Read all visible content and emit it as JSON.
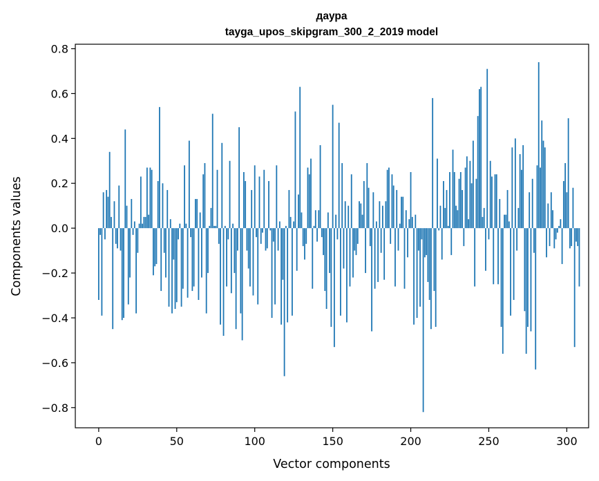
{
  "figure": {
    "title_line1": "даура",
    "title_line2": "tayga_upos_skipgram_300_2_2019 model"
  },
  "chart_data": {
    "type": "bar",
    "title": "даура\ntayga_upos_skipgram_300_2_2019 model",
    "xlabel": "Vector components",
    "ylabel": "Components values",
    "xlim": [
      -15,
      314
    ],
    "ylim": [
      -0.89,
      0.82
    ],
    "xticks": [
      0,
      50,
      100,
      150,
      200,
      250,
      300
    ],
    "xtick_labels": [
      "0",
      "50",
      "100",
      "150",
      "200",
      "250",
      "300"
    ],
    "yticks": [
      -0.8,
      -0.6,
      -0.4,
      -0.2,
      0.0,
      0.2,
      0.4,
      0.6,
      0.8
    ],
    "ytick_labels": [
      "−0.8",
      "−0.6",
      "−0.4",
      "−0.2",
      "0.0",
      "0.2",
      "0.4",
      "0.6",
      "0.8"
    ],
    "bar_color": "#1f77b4",
    "grid": false,
    "values": [
      -0.32,
      -0.03,
      -0.39,
      0.16,
      -0.05,
      0.17,
      0.14,
      0.34,
      0.05,
      -0.45,
      0.12,
      -0.07,
      -0.09,
      0.19,
      -0.1,
      -0.41,
      -0.4,
      0.44,
      0.1,
      -0.34,
      -0.22,
      0.13,
      -0.03,
      0.03,
      -0.38,
      -0.11,
      0.02,
      0.23,
      0.02,
      0.05,
      0.05,
      0.27,
      0.06,
      0.27,
      0.26,
      -0.21,
      -0.17,
      -0.16,
      0.21,
      0.54,
      -0.28,
      0.2,
      -0.11,
      -0.22,
      0.17,
      -0.35,
      0.04,
      -0.38,
      -0.14,
      -0.36,
      -0.33,
      -0.05,
      0.02,
      -0.35,
      -0.27,
      0.28,
      0.02,
      -0.31,
      0.39,
      -0.04,
      -0.28,
      -0.26,
      0.13,
      0.13,
      -0.32,
      0.07,
      -0.22,
      0.24,
      0.29,
      -0.38,
      -0.2,
      0.01,
      0.09,
      0.51,
      0.01,
      0.01,
      0.26,
      -0.07,
      -0.43,
      0.38,
      -0.48,
      0.01,
      -0.26,
      -0.05,
      0.3,
      -0.29,
      0.02,
      -0.2,
      -0.45,
      -0.1,
      0.45,
      -0.38,
      -0.5,
      0.25,
      0.21,
      -0.1,
      -0.18,
      -0.26,
      0.17,
      -0.3,
      0.28,
      -0.04,
      -0.34,
      0.23,
      -0.07,
      -0.02,
      0.26,
      -0.1,
      -0.09,
      0.21,
      -0.01,
      -0.4,
      -0.06,
      -0.34,
      0.28,
      -0.1,
      0.03,
      -0.43,
      -0.23,
      -0.66,
      0.01,
      -0.42,
      0.17,
      0.05,
      -0.39,
      0.03,
      0.52,
      -0.19,
      0.15,
      0.63,
      0.07,
      -0.08,
      -0.14,
      -0.07,
      0.27,
      0.24,
      0.31,
      -0.27,
      0.01,
      0.08,
      -0.06,
      0.08,
      0.37,
      -0.04,
      -0.12,
      -0.28,
      -0.36,
      0.07,
      -0.2,
      -0.44,
      0.55,
      -0.53,
      0.06,
      -0.05,
      0.47,
      -0.39,
      0.29,
      -0.18,
      0.12,
      -0.42,
      0.1,
      -0.26,
      0.24,
      -0.22,
      -0.1,
      -0.12,
      -0.07,
      0.12,
      0.11,
      0.06,
      0.21,
      -0.2,
      0.29,
      0.18,
      -0.08,
      -0.46,
      0.16,
      -0.27,
      0.03,
      -0.24,
      0.12,
      -0.11,
      0.1,
      -0.23,
      0.12,
      0.26,
      0.27,
      -0.07,
      0.24,
      0.19,
      -0.26,
      0.17,
      -0.1,
      0.02,
      0.14,
      0.14,
      -0.27,
      0.08,
      -0.13,
      0.04,
      0.25,
      0.05,
      -0.43,
      0.06,
      -0.4,
      -0.1,
      -0.35,
      -0.05,
      -0.82,
      -0.13,
      -0.12,
      -0.24,
      -0.32,
      -0.45,
      0.58,
      -0.28,
      -0.44,
      0.31,
      -0.01,
      0.1,
      -0.14,
      0.21,
      0.09,
      0.17,
      0.01,
      0.25,
      -0.12,
      0.35,
      0.25,
      0.1,
      0.08,
      0.22,
      0.25,
      0.17,
      -0.08,
      0.27,
      0.32,
      0.04,
      0.3,
      0.2,
      0.39,
      -0.26,
      0.22,
      0.5,
      0.62,
      0.63,
      0.05,
      0.09,
      -0.19,
      0.71,
      -0.05,
      0.3,
      0.23,
      -0.25,
      0.24,
      0.24,
      -0.25,
      0.13,
      -0.44,
      -0.56,
      0.06,
      0.06,
      0.17,
      0.03,
      -0.39,
      0.36,
      -0.32,
      0.4,
      -0.1,
      0.09,
      0.33,
      0.26,
      0.37,
      -0.37,
      -0.56,
      -0.44,
      0.16,
      -0.46,
      0.22,
      -0.11,
      -0.63,
      0.28,
      0.74,
      0.27,
      0.48,
      0.39,
      0.36,
      -0.13,
      0.11,
      -0.08,
      0.16,
      0.08,
      -0.09,
      -0.05,
      -0.02,
      0.01,
      0.04,
      -0.16,
      0.21,
      0.29,
      0.16,
      0.49,
      -0.09,
      -0.08,
      0.18,
      -0.53,
      -0.06,
      -0.08,
      -0.26
    ]
  }
}
